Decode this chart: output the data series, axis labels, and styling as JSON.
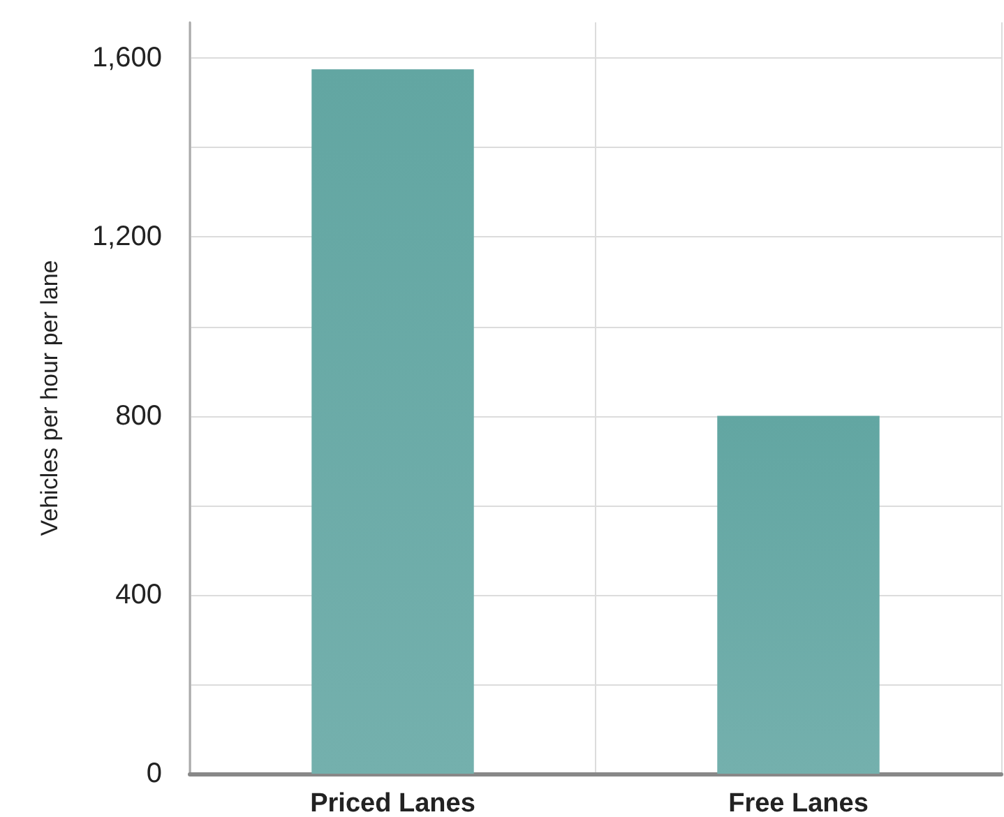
{
  "chart_data": {
    "type": "bar",
    "ylabel": "Vehicles per hour per lane",
    "categories": [
      "Priced Lanes",
      "Free Lanes"
    ],
    "values": [
      1575,
      800
    ],
    "color": "#62a6a2",
    "ylim": [
      0,
      1680
    ],
    "yticks": [
      0,
      {
        "value": 200,
        "label": null
      },
      400,
      {
        "value": 600,
        "label": null
      },
      800,
      {
        "value": 1000,
        "label": null
      },
      {
        "value": 1200,
        "label": "1,200"
      },
      {
        "value": 1400,
        "label": null
      },
      {
        "value": 1600,
        "label": "1,600"
      }
    ],
    "grid": true
  }
}
